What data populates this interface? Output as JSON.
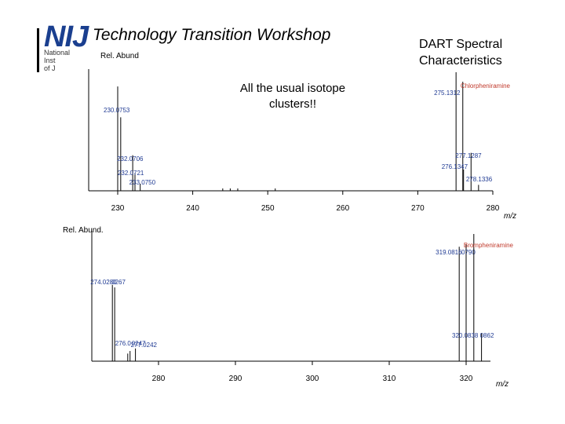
{
  "header": {
    "logo_text": "NIJ",
    "logo_lines": [
      "National",
      "Inst",
      "of J"
    ],
    "title": "Technology Transition Workshop"
  },
  "slide_title": "DART Spectral Characteristics",
  "callout": "All the usual isotope clusters!!",
  "colors": {
    "peak_label": "#1f3a93",
    "compound": "#c0392b",
    "logo": "#1a3f8f"
  },
  "chart_data": [
    {
      "type": "bar",
      "ylabel": "Rel. Abund",
      "xlabel": "m/z",
      "compound": "Chlorpheniramine",
      "xlim": [
        228,
        282
      ],
      "ylim": [
        0,
        100
      ],
      "ticks": [
        230,
        240,
        250,
        260,
        270,
        280
      ],
      "tick_labels": [
        "230",
        "240",
        "250",
        "260",
        "270",
        "280"
      ],
      "peaks": [
        {
          "x": 230.0,
          "y": 88,
          "label": "230.0753"
        },
        {
          "x": 230.4,
          "y": 62,
          "label": ""
        },
        {
          "x": 232.0,
          "y": 30,
          "label": "232.0706"
        },
        {
          "x": 232.3,
          "y": 15,
          "label": "232.0721"
        },
        {
          "x": 233.0,
          "y": 6,
          "label": "233.0750"
        },
        {
          "x": 244.0,
          "y": 2,
          "label": ""
        },
        {
          "x": 245.0,
          "y": 2,
          "label": ""
        },
        {
          "x": 246.0,
          "y": 2,
          "label": ""
        },
        {
          "x": 251.0,
          "y": 2,
          "label": ""
        },
        {
          "x": 275.1,
          "y": 100,
          "label": "275.1312"
        },
        {
          "x": 276.0,
          "y": 92,
          "label": ""
        },
        {
          "x": 277.1,
          "y": 32,
          "label": "277.1287"
        },
        {
          "x": 276.1,
          "y": 18,
          "label": "276.1347"
        },
        {
          "x": 278.1,
          "y": 5,
          "label": "278.1336"
        }
      ]
    },
    {
      "type": "bar",
      "ylabel": "Rel. Abund.",
      "xlabel": "m/z",
      "compound": "Brompheniramine",
      "xlim": [
        272,
        323
      ],
      "ylim": [
        0,
        100
      ],
      "ticks": [
        280,
        290,
        300,
        310,
        320
      ],
      "tick_labels": [
        "280",
        "290",
        "300",
        "310",
        "320"
      ],
      "peaks": [
        {
          "x": 274.0,
          "y": 60,
          "label": "274.0280"
        },
        {
          "x": 274.3,
          "y": 58,
          "label": "0267"
        },
        {
          "x": 276.0,
          "y": 6,
          "label": "276.0"
        },
        {
          "x": 276.3,
          "y": 8,
          "label": "0247"
        },
        {
          "x": 277.0,
          "y": 10,
          "label": "277.0242"
        },
        {
          "x": 319.1,
          "y": 90,
          "label": "319.0816"
        },
        {
          "x": 320.0,
          "y": 92,
          "label": "0790"
        },
        {
          "x": 321.0,
          "y": 100,
          "label": ""
        },
        {
          "x": 320.0,
          "y": 18,
          "label": "320.0838"
        },
        {
          "x": 322.0,
          "y": 22,
          "label": "0862"
        }
      ]
    }
  ]
}
